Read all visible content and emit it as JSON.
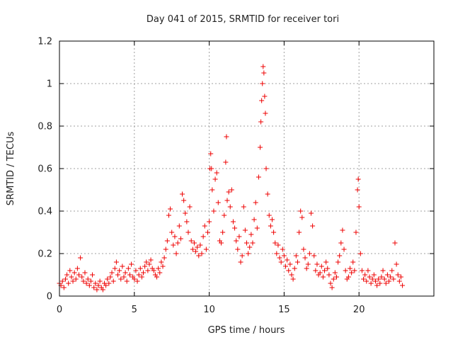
{
  "chart_data": {
    "type": "scatter",
    "title": "Day 041 of 2015, SRMTID for receiver tori",
    "xlabel": "GPS time / hours",
    "ylabel": "SRMTID / TECUs",
    "xlim": [
      0,
      25
    ],
    "ylim": [
      0,
      1.2
    ],
    "xticks": [
      0,
      5,
      10,
      15,
      20
    ],
    "xtick_labels": [
      "0",
      "5",
      "10",
      "15",
      "20"
    ],
    "yticks": [
      0,
      0.2,
      0.4,
      0.6,
      0.8,
      1.0,
      1.2
    ],
    "ytick_labels": [
      "0",
      "0.2",
      "0.4",
      "0.6",
      "0.8",
      "1",
      "1.2"
    ],
    "grid": true,
    "marker": "+",
    "color": "#ee0000",
    "series": [
      {
        "name": "SRMTID",
        "points": [
          [
            0.0,
            0.06
          ],
          [
            0.1,
            0.05
          ],
          [
            0.2,
            0.07
          ],
          [
            0.3,
            0.04
          ],
          [
            0.4,
            0.08
          ],
          [
            0.5,
            0.1
          ],
          [
            0.6,
            0.06
          ],
          [
            0.7,
            0.12
          ],
          [
            0.8,
            0.09
          ],
          [
            0.9,
            0.07
          ],
          [
            1.0,
            0.11
          ],
          [
            1.1,
            0.08
          ],
          [
            1.2,
            0.13
          ],
          [
            1.3,
            0.1
          ],
          [
            1.4,
            0.18
          ],
          [
            1.5,
            0.09
          ],
          [
            1.6,
            0.07
          ],
          [
            1.7,
            0.11
          ],
          [
            1.8,
            0.06
          ],
          [
            1.9,
            0.08
          ],
          [
            2.0,
            0.05
          ],
          [
            2.1,
            0.07
          ],
          [
            2.2,
            0.1
          ],
          [
            2.3,
            0.04
          ],
          [
            2.4,
            0.06
          ],
          [
            2.5,
            0.03
          ],
          [
            2.6,
            0.05
          ],
          [
            2.7,
            0.07
          ],
          [
            2.8,
            0.04
          ],
          [
            2.9,
            0.03
          ],
          [
            3.0,
            0.06
          ],
          [
            3.1,
            0.05
          ],
          [
            3.2,
            0.08
          ],
          [
            3.3,
            0.06
          ],
          [
            3.4,
            0.09
          ],
          [
            3.5,
            0.11
          ],
          [
            3.6,
            0.07
          ],
          [
            3.7,
            0.13
          ],
          [
            3.8,
            0.16
          ],
          [
            3.9,
            0.1
          ],
          [
            4.0,
            0.12
          ],
          [
            4.1,
            0.08
          ],
          [
            4.2,
            0.14
          ],
          [
            4.3,
            0.09
          ],
          [
            4.4,
            0.11
          ],
          [
            4.5,
            0.07
          ],
          [
            4.6,
            0.13
          ],
          [
            4.7,
            0.1
          ],
          [
            4.8,
            0.15
          ],
          [
            4.9,
            0.09
          ],
          [
            5.0,
            0.08
          ],
          [
            5.1,
            0.12
          ],
          [
            5.2,
            0.07
          ],
          [
            5.3,
            0.1
          ],
          [
            5.4,
            0.13
          ],
          [
            5.5,
            0.09
          ],
          [
            5.6,
            0.11
          ],
          [
            5.7,
            0.14
          ],
          [
            5.8,
            0.16
          ],
          [
            5.9,
            0.12
          ],
          [
            6.0,
            0.15
          ],
          [
            6.1,
            0.17
          ],
          [
            6.2,
            0.13
          ],
          [
            6.3,
            0.12
          ],
          [
            6.4,
            0.1
          ],
          [
            6.5,
            0.09
          ],
          [
            6.6,
            0.13
          ],
          [
            6.7,
            0.11
          ],
          [
            6.8,
            0.16
          ],
          [
            6.9,
            0.14
          ],
          [
            7.0,
            0.18
          ],
          [
            7.1,
            0.22
          ],
          [
            7.2,
            0.26
          ],
          [
            7.3,
            0.38
          ],
          [
            7.4,
            0.41
          ],
          [
            7.5,
            0.3
          ],
          [
            7.6,
            0.24
          ],
          [
            7.7,
            0.28
          ],
          [
            7.8,
            0.2
          ],
          [
            7.9,
            0.25
          ],
          [
            8.0,
            0.33
          ],
          [
            8.1,
            0.27
          ],
          [
            8.2,
            0.48
          ],
          [
            8.3,
            0.45
          ],
          [
            8.4,
            0.39
          ],
          [
            8.5,
            0.35
          ],
          [
            8.6,
            0.3
          ],
          [
            8.7,
            0.42
          ],
          [
            8.8,
            0.26
          ],
          [
            8.9,
            0.22
          ],
          [
            9.0,
            0.25
          ],
          [
            9.1,
            0.21
          ],
          [
            9.2,
            0.23
          ],
          [
            9.3,
            0.19
          ],
          [
            9.4,
            0.24
          ],
          [
            9.5,
            0.2
          ],
          [
            9.6,
            0.28
          ],
          [
            9.7,
            0.33
          ],
          [
            9.8,
            0.22
          ],
          [
            9.9,
            0.3
          ],
          [
            10.0,
            0.35
          ],
          [
            10.05,
            0.6
          ],
          [
            10.1,
            0.67
          ],
          [
            10.15,
            0.6
          ],
          [
            10.2,
            0.5
          ],
          [
            10.3,
            0.4
          ],
          [
            10.4,
            0.55
          ],
          [
            10.5,
            0.58
          ],
          [
            10.6,
            0.44
          ],
          [
            10.7,
            0.26
          ],
          [
            10.8,
            0.25
          ],
          [
            10.9,
            0.3
          ],
          [
            11.0,
            0.38
          ],
          [
            11.1,
            0.63
          ],
          [
            11.15,
            0.75
          ],
          [
            11.2,
            0.45
          ],
          [
            11.3,
            0.49
          ],
          [
            11.4,
            0.42
          ],
          [
            11.5,
            0.5
          ],
          [
            11.6,
            0.35
          ],
          [
            11.7,
            0.32
          ],
          [
            11.8,
            0.26
          ],
          [
            11.9,
            0.22
          ],
          [
            12.0,
            0.28
          ],
          [
            12.1,
            0.16
          ],
          [
            12.2,
            0.19
          ],
          [
            12.3,
            0.42
          ],
          [
            12.4,
            0.31
          ],
          [
            12.5,
            0.25
          ],
          [
            12.6,
            0.2
          ],
          [
            12.7,
            0.23
          ],
          [
            12.8,
            0.29
          ],
          [
            12.9,
            0.25
          ],
          [
            13.0,
            0.36
          ],
          [
            13.1,
            0.44
          ],
          [
            13.2,
            0.32
          ],
          [
            13.3,
            0.56
          ],
          [
            13.4,
            0.7
          ],
          [
            13.45,
            0.82
          ],
          [
            13.5,
            0.92
          ],
          [
            13.55,
            1.0
          ],
          [
            13.6,
            1.08
          ],
          [
            13.65,
            1.05
          ],
          [
            13.7,
            0.94
          ],
          [
            13.75,
            0.86
          ],
          [
            13.8,
            0.6
          ],
          [
            13.9,
            0.48
          ],
          [
            14.0,
            0.38
          ],
          [
            14.1,
            0.33
          ],
          [
            14.2,
            0.36
          ],
          [
            14.3,
            0.3
          ],
          [
            14.4,
            0.25
          ],
          [
            14.5,
            0.2
          ],
          [
            14.6,
            0.24
          ],
          [
            14.7,
            0.18
          ],
          [
            14.8,
            0.16
          ],
          [
            14.9,
            0.22
          ],
          [
            15.0,
            0.19
          ],
          [
            15.1,
            0.14
          ],
          [
            15.2,
            0.17
          ],
          [
            15.3,
            0.12
          ],
          [
            15.4,
            0.15
          ],
          [
            15.5,
            0.1
          ],
          [
            15.6,
            0.08
          ],
          [
            15.7,
            0.13
          ],
          [
            15.8,
            0.19
          ],
          [
            15.9,
            0.16
          ],
          [
            16.0,
            0.3
          ],
          [
            16.1,
            0.4
          ],
          [
            16.2,
            0.37
          ],
          [
            16.3,
            0.22
          ],
          [
            16.4,
            0.18
          ],
          [
            16.5,
            0.13
          ],
          [
            16.6,
            0.15
          ],
          [
            16.7,
            0.2
          ],
          [
            16.8,
            0.39
          ],
          [
            16.9,
            0.33
          ],
          [
            17.0,
            0.19
          ],
          [
            17.1,
            0.12
          ],
          [
            17.2,
            0.15
          ],
          [
            17.3,
            0.1
          ],
          [
            17.4,
            0.11
          ],
          [
            17.5,
            0.14
          ],
          [
            17.6,
            0.09
          ],
          [
            17.7,
            0.12
          ],
          [
            17.8,
            0.16
          ],
          [
            17.9,
            0.13
          ],
          [
            18.0,
            0.1
          ],
          [
            18.1,
            0.06
          ],
          [
            18.2,
            0.04
          ],
          [
            18.3,
            0.08
          ],
          [
            18.4,
            0.11
          ],
          [
            18.5,
            0.09
          ],
          [
            18.6,
            0.16
          ],
          [
            18.7,
            0.19
          ],
          [
            18.8,
            0.25
          ],
          [
            18.9,
            0.31
          ],
          [
            19.0,
            0.22
          ],
          [
            19.1,
            0.12
          ],
          [
            19.2,
            0.08
          ],
          [
            19.3,
            0.09
          ],
          [
            19.4,
            0.13
          ],
          [
            19.5,
            0.11
          ],
          [
            19.6,
            0.16
          ],
          [
            19.7,
            0.12
          ],
          [
            19.8,
            0.3
          ],
          [
            19.9,
            0.5
          ],
          [
            19.95,
            0.55
          ],
          [
            20.0,
            0.42
          ],
          [
            20.1,
            0.2
          ],
          [
            20.2,
            0.12
          ],
          [
            20.3,
            0.08
          ],
          [
            20.4,
            0.1
          ],
          [
            20.5,
            0.07
          ],
          [
            20.6,
            0.12
          ],
          [
            20.7,
            0.09
          ],
          [
            20.8,
            0.06
          ],
          [
            20.9,
            0.08
          ],
          [
            21.0,
            0.1
          ],
          [
            21.1,
            0.07
          ],
          [
            21.2,
            0.05
          ],
          [
            21.3,
            0.08
          ],
          [
            21.4,
            0.06
          ],
          [
            21.5,
            0.09
          ],
          [
            21.6,
            0.12
          ],
          [
            21.7,
            0.08
          ],
          [
            21.8,
            0.06
          ],
          [
            21.9,
            0.1
          ],
          [
            22.0,
            0.07
          ],
          [
            22.1,
            0.09
          ],
          [
            22.2,
            0.12
          ],
          [
            22.3,
            0.08
          ],
          [
            22.4,
            0.25
          ],
          [
            22.5,
            0.15
          ],
          [
            22.6,
            0.1
          ],
          [
            22.7,
            0.07
          ],
          [
            22.8,
            0.09
          ],
          [
            22.9,
            0.05
          ]
        ]
      }
    ]
  }
}
